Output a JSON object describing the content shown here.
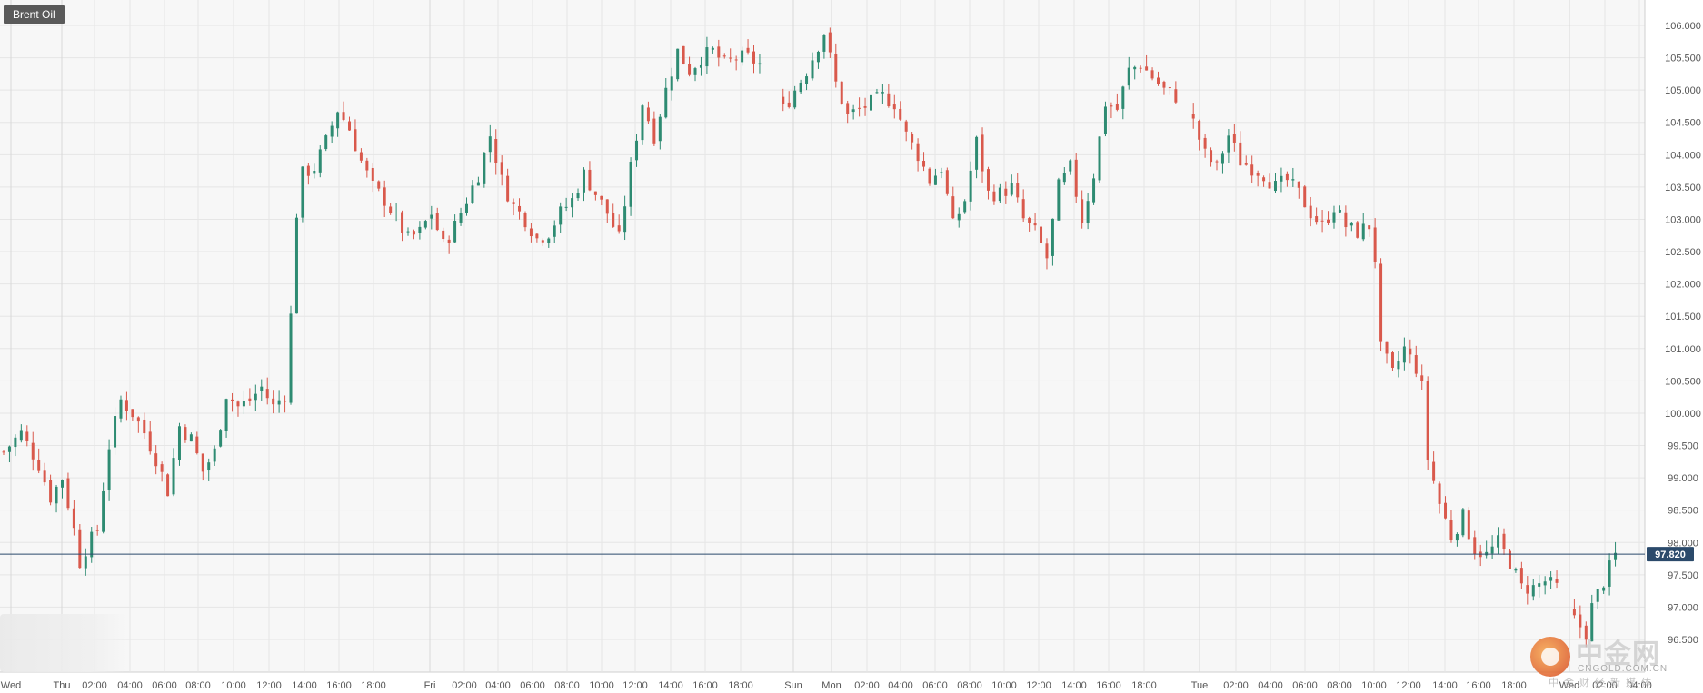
{
  "instrument": {
    "name": "Brent Oil"
  },
  "watermark": {
    "brand_cn": "中金网",
    "domain": "CNGOLD.COM.CN",
    "tagline_cn": "中金财经新媒体"
  },
  "colors": {
    "background": "#f7f7f7",
    "grid": "#e6e6e6",
    "axis_text": "#555555",
    "up_candle": "#2e8b72",
    "down_candle": "#d9594c",
    "price_line": "#2b4a6b",
    "price_tag_bg": "#2b4a6b"
  },
  "chart_data": {
    "type": "candlestick",
    "title": "Brent Oil",
    "current_price": 97.82,
    "current_price_label": "97.820",
    "ylim": [
      96.0,
      106.3
    ],
    "y_ticks": [
      "96.500",
      "97.000",
      "97.500",
      "98.000",
      "98.500",
      "99.000",
      "99.500",
      "100.000",
      "100.500",
      "101.000",
      "101.500",
      "102.000",
      "102.500",
      "103.000",
      "103.500",
      "104.000",
      "104.500",
      "105.000",
      "105.500",
      "106.000"
    ],
    "x_labels": [
      "Wed",
      "Thu",
      "02:00",
      "04:00",
      "06:00",
      "08:00",
      "10:00",
      "12:00",
      "14:00",
      "16:00",
      "18:00",
      "Fri",
      "02:00",
      "04:00",
      "06:00",
      "08:00",
      "10:00",
      "12:00",
      "14:00",
      "16:00",
      "18:00",
      "Sun",
      "Mon",
      "02:00",
      "04:00",
      "06:00",
      "08:00",
      "10:00",
      "12:00",
      "14:00",
      "16:00",
      "18:00",
      "Tue",
      "02:00",
      "04:00",
      "06:00",
      "08:00",
      "10:00",
      "12:00",
      "14:00",
      "16:00",
      "18:00",
      "Wed",
      "02:00",
      "04:00"
    ],
    "day_separators": [
      "Thu",
      "Fri",
      "Sun",
      "Mon",
      "Tue",
      "Wed"
    ],
    "grid": true,
    "close_path": [
      [
        0,
        99.4
      ],
      [
        3,
        99.7
      ],
      [
        6,
        99.2
      ],
      [
        8,
        98.7
      ],
      [
        10,
        99.0
      ],
      [
        12,
        98.2
      ],
      [
        13,
        97.7
      ],
      [
        14,
        97.9
      ],
      [
        16,
        98.2
      ],
      [
        18,
        99.5
      ],
      [
        20,
        100.2
      ],
      [
        22,
        100.0
      ],
      [
        24,
        99.7
      ],
      [
        26,
        99.3
      ],
      [
        28,
        98.8
      ],
      [
        30,
        99.8
      ],
      [
        32,
        99.6
      ],
      [
        34,
        99.1
      ],
      [
        36,
        99.4
      ],
      [
        38,
        100.3
      ],
      [
        40,
        100.1
      ],
      [
        42,
        100.2
      ],
      [
        44,
        100.4
      ],
      [
        46,
        100.1
      ],
      [
        48,
        100.3
      ],
      [
        49,
        101.5
      ],
      [
        50,
        103.1
      ],
      [
        51,
        103.7
      ],
      [
        53,
        103.8
      ],
      [
        55,
        104.2
      ],
      [
        57,
        104.7
      ],
      [
        59,
        104.4
      ],
      [
        61,
        103.9
      ],
      [
        63,
        103.5
      ],
      [
        65,
        103.3
      ],
      [
        67,
        103.0
      ],
      [
        69,
        102.7
      ],
      [
        71,
        102.8
      ],
      [
        73,
        103.1
      ],
      [
        75,
        102.6
      ],
      [
        77,
        102.9
      ],
      [
        79,
        103.3
      ],
      [
        81,
        103.7
      ],
      [
        83,
        104.3
      ],
      [
        85,
        103.6
      ],
      [
        87,
        103.2
      ],
      [
        89,
        103.0
      ],
      [
        91,
        102.7
      ],
      [
        93,
        102.8
      ],
      [
        95,
        103.1
      ],
      [
        97,
        103.3
      ],
      [
        99,
        103.7
      ],
      [
        101,
        103.4
      ],
      [
        103,
        103.1
      ],
      [
        105,
        102.7
      ],
      [
        107,
        103.8
      ],
      [
        109,
        104.8
      ],
      [
        111,
        104.3
      ],
      [
        113,
        105.0
      ],
      [
        115,
        105.6
      ],
      [
        117,
        105.3
      ],
      [
        119,
        105.5
      ],
      [
        121,
        105.6
      ],
      [
        123,
        105.4
      ],
      [
        125,
        105.5
      ],
      [
        127,
        105.5
      ],
      [
        129,
        105.4
      ],
      [
        133,
        104.7
      ],
      [
        135,
        105.0
      ],
      [
        137,
        105.3
      ],
      [
        139,
        105.7
      ],
      [
        140,
        105.9
      ],
      [
        142,
        105.1
      ],
      [
        144,
        104.6
      ],
      [
        146,
        104.7
      ],
      [
        148,
        104.8
      ],
      [
        150,
        104.9
      ],
      [
        152,
        104.8
      ],
      [
        154,
        104.3
      ],
      [
        156,
        104.0
      ],
      [
        158,
        103.6
      ],
      [
        160,
        103.8
      ],
      [
        162,
        102.9
      ],
      [
        164,
        103.3
      ],
      [
        166,
        104.2
      ],
      [
        168,
        103.4
      ],
      [
        170,
        103.4
      ],
      [
        172,
        103.5
      ],
      [
        174,
        103.0
      ],
      [
        176,
        102.8
      ],
      [
        178,
        102.4
      ],
      [
        180,
        103.5
      ],
      [
        182,
        103.8
      ],
      [
        184,
        103.0
      ],
      [
        186,
        103.7
      ],
      [
        188,
        104.8
      ],
      [
        190,
        104.7
      ],
      [
        192,
        105.3
      ],
      [
        194,
        105.4
      ],
      [
        196,
        105.2
      ],
      [
        198,
        105.0
      ],
      [
        200,
        104.9
      ],
      [
        203,
        104.5
      ],
      [
        205,
        104.0
      ],
      [
        207,
        103.8
      ],
      [
        209,
        104.3
      ],
      [
        211,
        103.9
      ],
      [
        213,
        103.8
      ],
      [
        215,
        103.7
      ],
      [
        217,
        103.5
      ],
      [
        219,
        103.6
      ],
      [
        221,
        103.4
      ],
      [
        223,
        103.1
      ],
      [
        225,
        102.9
      ],
      [
        227,
        103.2
      ],
      [
        229,
        102.9
      ],
      [
        231,
        102.8
      ],
      [
        233,
        102.9
      ],
      [
        234,
        102.4
      ],
      [
        235,
        101.0
      ],
      [
        237,
        100.6
      ],
      [
        239,
        101.0
      ],
      [
        241,
        100.7
      ],
      [
        242,
        100.4
      ],
      [
        243,
        99.3
      ],
      [
        245,
        98.6
      ],
      [
        247,
        98.1
      ],
      [
        249,
        98.4
      ],
      [
        251,
        97.9
      ],
      [
        253,
        97.8
      ],
      [
        255,
        98.0
      ],
      [
        257,
        97.7
      ],
      [
        259,
        97.3
      ],
      [
        261,
        97.3
      ],
      [
        263,
        97.4
      ],
      [
        265,
        97.3
      ],
      [
        268,
        96.8
      ],
      [
        270,
        96.6
      ],
      [
        271,
        97.0
      ],
      [
        273,
        97.4
      ],
      [
        275,
        97.8
      ]
    ],
    "candles_per_px": 5.26
  }
}
